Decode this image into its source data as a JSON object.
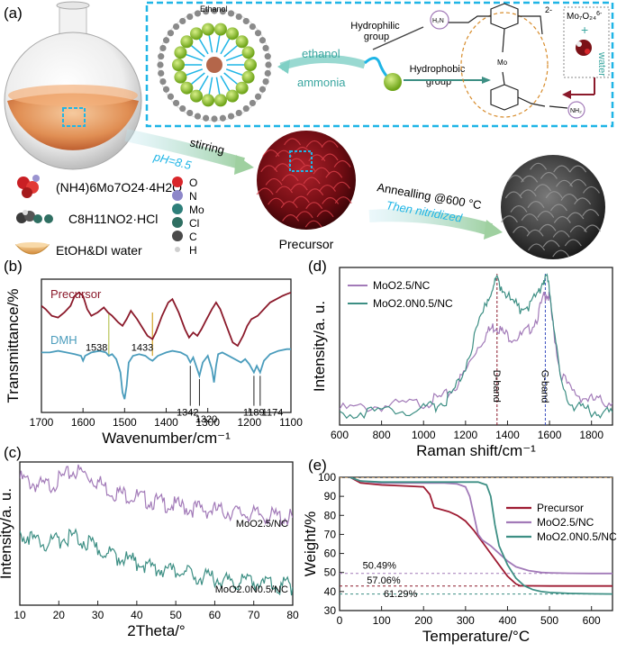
{
  "panel_labels": [
    "(a)",
    "(b)",
    "(c)",
    "(d)",
    "(e)"
  ],
  "scheme": {
    "ethanol_top": "Ethanol",
    "hydrophilic": [
      "Hydrophilic",
      "group"
    ],
    "hydrophobic": [
      "Hydrophobic",
      "group"
    ],
    "ethanol_arrow": "ethanol",
    "ammonia_arrow": "ammonia",
    "water": "water",
    "plus": "+",
    "mo_ion": "Mo7O24 6-",
    "charge": "2-",
    "stirring": "stirring",
    "ph": "pH=8.5",
    "annealing": "Annealling @600 °C",
    "nitridized": "Then nitridized",
    "precursor": "Precursor",
    "reagents": [
      "(NH4)6Mo7O24·4H2O",
      "C8H11NO2·HCl",
      "EtOH&DI water"
    ],
    "legend_atoms": [
      {
        "label": "O",
        "color": "#d9262a"
      },
      {
        "label": "N",
        "color": "#8d87c9"
      },
      {
        "label": "Mo",
        "color": "#2e7f7a"
      },
      {
        "label": "Cl",
        "color": "#2f6f62"
      },
      {
        "label": "C",
        "color": "#4a4a4a"
      },
      {
        "label": "H",
        "color": "#cfcfcf"
      }
    ],
    "colors": {
      "cyan": "#1fb5e6",
      "teal": "#3aa6a0",
      "dark_red": "#7b1116",
      "green": "#9ccc2e"
    }
  },
  "chart_data": [
    {
      "panel": "(b)",
      "type": "line",
      "xlabel": "Wavenumber/cm⁻¹",
      "ylabel": "Transmittance/%",
      "xlim": [
        1700,
        1100
      ],
      "xticks": [
        1700,
        1600,
        1500,
        1400,
        1300,
        1200,
        1100
      ],
      "series": [
        {
          "name": "Precursor",
          "color": "#8b1a2b",
          "x": [
            1700,
            1690,
            1675,
            1660,
            1645,
            1630,
            1620,
            1610,
            1600,
            1590,
            1580,
            1565,
            1550,
            1540,
            1530,
            1515,
            1505,
            1495,
            1485,
            1470,
            1455,
            1445,
            1433,
            1425,
            1410,
            1395,
            1385,
            1370,
            1355,
            1345,
            1335,
            1325,
            1315,
            1305,
            1290,
            1280,
            1270,
            1255,
            1240,
            1228,
            1215,
            1205,
            1195,
            1180,
            1165,
            1150,
            1135,
            1120,
            1110,
            1100
          ],
          "y": [
            64,
            62,
            58,
            57,
            60,
            64,
            70,
            72,
            70,
            62,
            58,
            60,
            63,
            60,
            58,
            54,
            52,
            56,
            61,
            56,
            50,
            46,
            44,
            48,
            58,
            66,
            68,
            60,
            50,
            45,
            48,
            46,
            50,
            55,
            62,
            66,
            62,
            52,
            42,
            40,
            46,
            52,
            56,
            58,
            62,
            66,
            68,
            70,
            71,
            72
          ]
        },
        {
          "name": "DMH",
          "color": "#4a9cbc",
          "x": [
            1700,
            1680,
            1660,
            1640,
            1620,
            1605,
            1600,
            1595,
            1580,
            1560,
            1545,
            1538,
            1530,
            1520,
            1510,
            1505,
            1500,
            1495,
            1490,
            1480,
            1465,
            1450,
            1440,
            1433,
            1420,
            1400,
            1385,
            1365,
            1350,
            1342,
            1335,
            1328,
            1320,
            1312,
            1300,
            1290,
            1285,
            1280,
            1275,
            1265,
            1250,
            1235,
            1220,
            1210,
            1200,
            1189,
            1182,
            1174,
            1165,
            1150,
            1130,
            1110,
            1100
          ],
          "y": [
            36,
            36,
            37,
            36,
            35,
            34,
            31,
            34,
            36,
            37,
            36,
            34,
            35,
            32,
            24,
            12,
            8,
            16,
            30,
            34,
            35,
            34,
            32,
            31,
            34,
            36,
            37,
            36,
            34,
            30,
            33,
            28,
            22,
            30,
            34,
            26,
            18,
            28,
            35,
            36,
            34,
            32,
            30,
            32,
            29,
            24,
            28,
            24,
            31,
            35,
            37,
            38,
            38
          ]
        }
      ],
      "annotations": [
        "1538",
        "1433",
        "1342",
        "1320",
        "1189",
        "1174"
      ]
    },
    {
      "panel": "(c)",
      "type": "line",
      "xlabel": "2Theta/°",
      "ylabel": "Intensity/a. u.",
      "xlim": [
        10,
        80
      ],
      "xticks": [
        10,
        20,
        30,
        40,
        50,
        60,
        70,
        80
      ],
      "series": [
        {
          "name": "MoO2.5/NC",
          "color": "#a27ab8",
          "x": [
            10,
            12,
            14,
            16,
            18,
            20,
            22,
            24,
            26,
            28,
            30,
            32,
            34,
            36,
            38,
            40,
            42,
            44,
            46,
            48,
            50,
            52,
            54,
            56,
            58,
            60,
            62,
            64,
            66,
            68,
            70,
            72,
            74,
            76,
            78,
            80
          ],
          "y": [
            94,
            92,
            90,
            89,
            90,
            93,
            96,
            99,
            98,
            95,
            92,
            88,
            85,
            84,
            83,
            82,
            80,
            79,
            78,
            77,
            76,
            75,
            74,
            74,
            73,
            73,
            72,
            72,
            71,
            71,
            70,
            70,
            69,
            69,
            68,
            68
          ]
        },
        {
          "name": "MoO2.0N0.5/NC",
          "color": "#3d8f84",
          "x": [
            10,
            12,
            14,
            16,
            18,
            20,
            22,
            24,
            26,
            28,
            30,
            32,
            34,
            36,
            38,
            40,
            42,
            44,
            46,
            48,
            50,
            52,
            54,
            56,
            58,
            60,
            62,
            64,
            66,
            68,
            70,
            72,
            74,
            76,
            78,
            80
          ],
          "y": [
            58,
            56,
            53,
            51,
            51,
            53,
            55,
            55,
            53,
            50,
            47,
            45,
            43,
            41,
            40,
            38,
            37,
            35,
            34,
            33,
            32,
            31,
            30,
            29,
            28,
            28,
            27,
            26,
            26,
            25,
            25,
            24,
            24,
            23,
            23,
            22
          ]
        }
      ]
    },
    {
      "panel": "(d)",
      "type": "line",
      "xlabel": "Raman shift/cm⁻¹",
      "ylabel": "Intensity/a. u.",
      "xlim": [
        600,
        1900
      ],
      "xticks": [
        600,
        800,
        1000,
        1200,
        1400,
        1600,
        1800
      ],
      "bands": [
        {
          "label": "D-band",
          "x": 1350,
          "color": "#8b1a2b"
        },
        {
          "label": "G-band",
          "x": 1580,
          "color": "#3a4fc0"
        }
      ],
      "series": [
        {
          "name": "MoO2.5/NC",
          "color": "#a27ab8",
          "x": [
            600,
            700,
            800,
            900,
            1000,
            1050,
            1100,
            1150,
            1200,
            1250,
            1300,
            1330,
            1350,
            1380,
            1420,
            1460,
            1500,
            1540,
            1570,
            1585,
            1600,
            1620,
            1650,
            1700,
            1750,
            1800,
            1850,
            1900
          ],
          "y": [
            10,
            11,
            12,
            13,
            14,
            16,
            18,
            24,
            34,
            48,
            58,
            62,
            63,
            58,
            56,
            56,
            60,
            68,
            80,
            84,
            80,
            60,
            34,
            22,
            18,
            16,
            15,
            14
          ]
        },
        {
          "name": "MoO2.0N0.5/NC",
          "color": "#3d8f84",
          "x": [
            600,
            700,
            800,
            900,
            1000,
            1050,
            1100,
            1150,
            1200,
            1250,
            1300,
            1330,
            1350,
            1380,
            1420,
            1460,
            1500,
            1540,
            1570,
            1585,
            1600,
            1620,
            1650,
            1700,
            1750,
            1800,
            1850,
            1900
          ],
          "y": [
            8,
            8,
            9,
            9,
            10,
            12,
            15,
            22,
            38,
            58,
            78,
            88,
            92,
            86,
            78,
            74,
            76,
            82,
            92,
            94,
            86,
            62,
            30,
            14,
            10,
            9,
            8,
            8
          ]
        }
      ]
    },
    {
      "panel": "(e)",
      "type": "line",
      "xlabel": "Temperature/°C",
      "ylabel": "Weight/%",
      "xlim": [
        0,
        650
      ],
      "ylim": [
        30,
        100
      ],
      "xticks": [
        0,
        100,
        200,
        300,
        400,
        500,
        600
      ],
      "yticks": [
        30,
        40,
        50,
        60,
        70,
        80,
        90,
        100
      ],
      "reference_lines": [
        {
          "label": "50.49%",
          "y": 49.5,
          "color": "#a27ab8"
        },
        {
          "label": "57.06%",
          "y": 42.9,
          "color": "#8b1a2b"
        },
        {
          "label": "61.29%",
          "y": 38.7,
          "color": "#3d8f84"
        }
      ],
      "series": [
        {
          "name": "Precursor",
          "color": "#9e1b32",
          "x": [
            25,
            50,
            100,
            150,
            200,
            215,
            225,
            235,
            260,
            280,
            300,
            320,
            340,
            360,
            380,
            400,
            420,
            430,
            450,
            500,
            550,
            600,
            650
          ],
          "y": [
            100,
            97,
            96,
            95.5,
            95,
            91,
            84,
            83.5,
            82,
            80,
            77,
            72,
            66,
            60,
            54,
            48,
            44,
            43,
            43,
            42.9,
            42.9,
            42.9,
            42.9
          ]
        },
        {
          "name": "MoO2.5/NC",
          "color": "#a27ab8",
          "x": [
            25,
            50,
            100,
            150,
            200,
            250,
            280,
            300,
            310,
            320,
            330,
            340,
            360,
            380,
            400,
            420,
            450,
            480,
            500,
            550,
            600,
            650
          ],
          "y": [
            100,
            98,
            97,
            97,
            97,
            97,
            96.5,
            95,
            90,
            80,
            70,
            67,
            64,
            60,
            56,
            53,
            51,
            50,
            49.8,
            49.6,
            49.5,
            49.5
          ]
        },
        {
          "name": "MoO2.0N0.5/NC",
          "color": "#3d8f84",
          "x": [
            25,
            50,
            100,
            150,
            200,
            250,
            300,
            330,
            350,
            360,
            370,
            380,
            400,
            420,
            440,
            460,
            480,
            500,
            550,
            600,
            650
          ],
          "y": [
            100,
            98,
            97.5,
            97.5,
            97.5,
            97.5,
            97.5,
            97.5,
            96,
            90,
            75,
            64,
            54,
            47,
            43,
            41,
            40,
            39.5,
            39,
            38.8,
            38.7
          ]
        }
      ]
    }
  ]
}
